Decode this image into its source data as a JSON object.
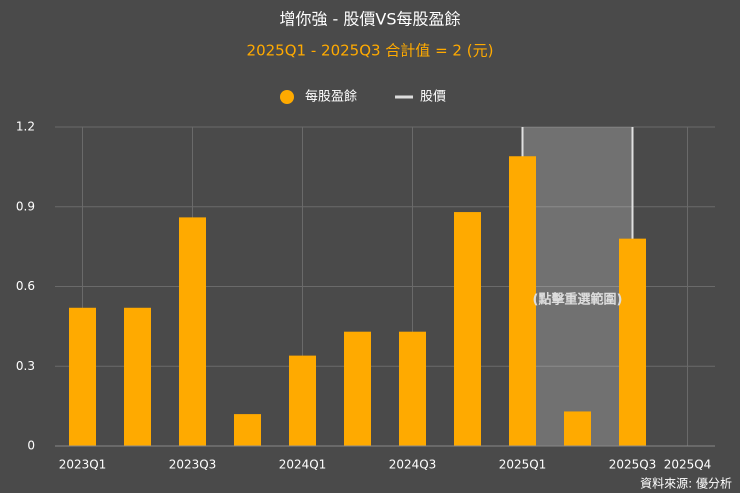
{
  "chart_data": {
    "type": "bar",
    "title": "增你強 - 股價VS每股盈餘",
    "subtitle": "2025Q1 - 2025Q3 合計值 = 2 (元)",
    "categories": [
      "2023Q1",
      null,
      "2023Q3",
      null,
      "2024Q1",
      null,
      "2024Q3",
      null,
      "2025Q1",
      null,
      "2025Q3",
      "2025Q4"
    ],
    "series": [
      {
        "name": "每股盈餘",
        "color": "#ffaa00",
        "values": [
          0.52,
          0.52,
          0.86,
          0.12,
          0.34,
          0.43,
          0.43,
          0.88,
          1.09,
          0.13,
          0.78,
          null
        ]
      },
      {
        "name": "股價",
        "type": "line",
        "color": "#dddddd",
        "values": [
          null,
          null,
          null,
          null,
          null,
          null,
          null,
          null,
          null,
          null,
          null,
          null
        ]
      }
    ],
    "ylim": [
      0,
      1.2
    ],
    "yticks": [
      0,
      0.3,
      0.6,
      0.9,
      1.2
    ],
    "grid": true,
    "highlight": {
      "label": "(點擊重選範圍)",
      "from": "2025Q1",
      "to": "2025Q3"
    },
    "source": "資料來源: 優分析"
  }
}
